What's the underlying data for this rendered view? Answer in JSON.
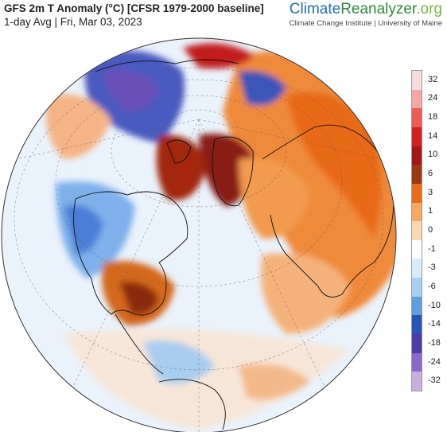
{
  "header": {
    "title": "GFS 2m T Anomaly (°C) [CFSR 1979-2000 baseline]",
    "subtitle": "1-day Avg | Fri, Mar 03, 2023"
  },
  "brand": {
    "name_part1": "Climate",
    "name_part2": "Reanalyzer",
    "name_part3": ".org",
    "affiliation": "Climate Change Institute | University of Maine"
  },
  "colors": {
    "brand_blue": "#1f6fb4",
    "brand_green": "#2f8a3c",
    "ocean_neutral": "#f4f7fb"
  },
  "legend": {
    "labels": [
      "32",
      "24",
      "18",
      "14",
      "10",
      "6",
      "3",
      "1",
      "0",
      "-1",
      "-3",
      "-6",
      "-10",
      "-14",
      "-18",
      "-24",
      "-32"
    ],
    "colors": [
      "#f6dcdc",
      "#f4a7a5",
      "#ee5a52",
      "#d41f1f",
      "#a41717",
      "#9b3a12",
      "#e86b18",
      "#f6a760",
      "#fbd7b0",
      "#ffffff",
      "#d9ecfa",
      "#a6cff0",
      "#5f9fe0",
      "#2a55b8",
      "#4e3aa8",
      "#8868c8",
      "#c8afe0"
    ]
  }
}
